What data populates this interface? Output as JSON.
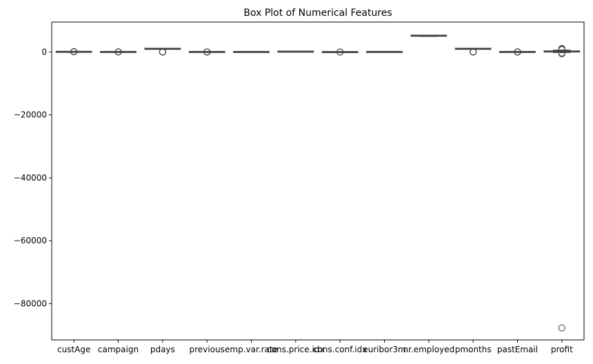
{
  "chart_data": {
    "type": "box",
    "title": "Box Plot of Numerical Features",
    "xlabel": "",
    "ylabel": "",
    "ylim": [
      -91500,
      9500
    ],
    "yticks": [
      0,
      -20000,
      -40000,
      -60000,
      -80000
    ],
    "ytick_labels": [
      "0",
      "−20000",
      "−40000",
      "−60000",
      "−80000"
    ],
    "grid": false,
    "legend": "none",
    "box_color": "#ffffff",
    "line_color": "#3f3f3f",
    "categories": [
      "custAge",
      "campaign",
      "pdays",
      "previous",
      "emp.var.rate",
      "cons.price.idx",
      "cons.conf.idx",
      "euribor3m",
      "nr.employed",
      "pmonths",
      "pastEmail",
      "profit"
    ],
    "boxes": [
      {
        "min": 18,
        "q1": 32,
        "median": 38,
        "q3": 47,
        "max": 70,
        "outliers": [
          75,
          80,
          85,
          90,
          95
        ]
      },
      {
        "min": 1,
        "q1": 1,
        "median": 2,
        "q3": 3,
        "max": 6,
        "outliers": [
          10,
          20,
          35,
          50
        ]
      },
      {
        "min": 999,
        "q1": 999,
        "median": 999,
        "q3": 999,
        "max": 999,
        "outliers": [
          0,
          3,
          6,
          10,
          15,
          25
        ]
      },
      {
        "min": 0,
        "q1": 0,
        "median": 0,
        "q3": 0,
        "max": 0,
        "outliers": [
          1,
          2,
          3,
          5,
          7
        ]
      },
      {
        "min": -3.4,
        "q1": -1.8,
        "median": 1.1,
        "q3": 1.4,
        "max": 1.4,
        "outliers": []
      },
      {
        "min": 92.2,
        "q1": 93.1,
        "median": 93.7,
        "q3": 93.99,
        "max": 94.8,
        "outliers": []
      },
      {
        "min": -50.8,
        "q1": -42.7,
        "median": -41.8,
        "q3": -36.4,
        "max": -26.9,
        "outliers": [
          -26.9,
          -30,
          -35
        ]
      },
      {
        "min": 0.6,
        "q1": 1.3,
        "median": 4.86,
        "q3": 4.96,
        "max": 5.0,
        "outliers": []
      },
      {
        "min": 4964,
        "q1": 5099,
        "median": 5191,
        "q3": 5228,
        "max": 5228,
        "outliers": []
      },
      {
        "min": 999,
        "q1": 999,
        "median": 999,
        "q3": 999,
        "max": 999,
        "outliers": [
          0,
          2,
          5,
          10,
          15,
          20
        ]
      },
      {
        "min": 0,
        "q1": 0,
        "median": 0,
        "q3": 0,
        "max": 0,
        "outliers": [
          2,
          5,
          8,
          12,
          18,
          25
        ]
      },
      {
        "min": -150,
        "q1": 0,
        "median": 100,
        "q3": 300,
        "max": 600,
        "outliers": [
          700,
          900,
          1100,
          -300,
          -600,
          -87700
        ]
      }
    ]
  }
}
